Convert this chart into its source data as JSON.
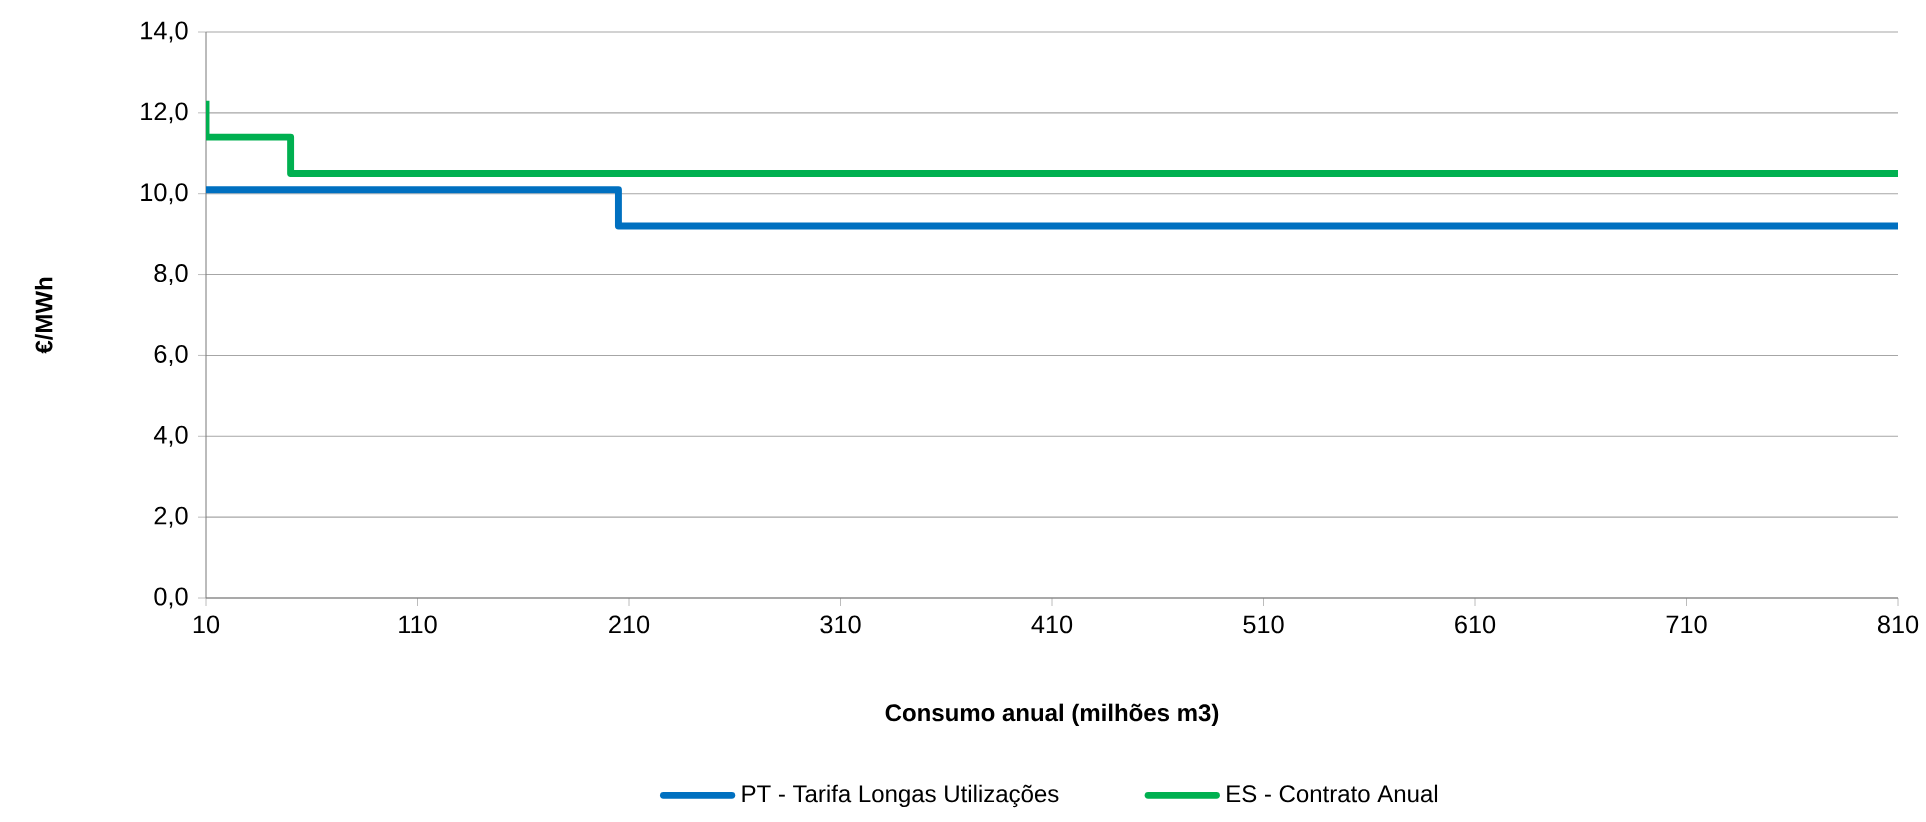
{
  "chart_data": {
    "type": "line",
    "xlabel": "Consumo anual  (milhões m3)",
    "ylabel": "€/MWh",
    "series": [
      {
        "name": "PT - Tarifa  Longas Utilizações",
        "color": "#0070c0",
        "x": [
          10,
          205,
          205,
          810
        ],
        "values": [
          10.1,
          10.1,
          9.2,
          9.2
        ]
      },
      {
        "name": "ES - Contrato Anual",
        "color": "#00b050",
        "x": [
          10,
          10,
          50,
          50,
          810
        ],
        "values": [
          12.3,
          11.4,
          11.4,
          10.5,
          10.5
        ]
      }
    ],
    "xlim": [
      10,
      810
    ],
    "xticks": [
      10,
      110,
      210,
      310,
      410,
      510,
      610,
      710,
      810
    ],
    "ylim": [
      0,
      14
    ],
    "yticks": [
      {
        "value": 0,
        "label": "0,0"
      },
      {
        "value": 2,
        "label": "2,0"
      },
      {
        "value": 4,
        "label": "4,0"
      },
      {
        "value": 6,
        "label": "6,0"
      },
      {
        "value": 8,
        "label": "8,0"
      },
      {
        "value": 10,
        "label": "10,0"
      },
      {
        "value": 12,
        "label": "12,0"
      },
      {
        "value": 14,
        "label": "14,0"
      }
    ],
    "grid": "y",
    "legend": "bottom",
    "marker": "none",
    "line_style": "solid"
  }
}
